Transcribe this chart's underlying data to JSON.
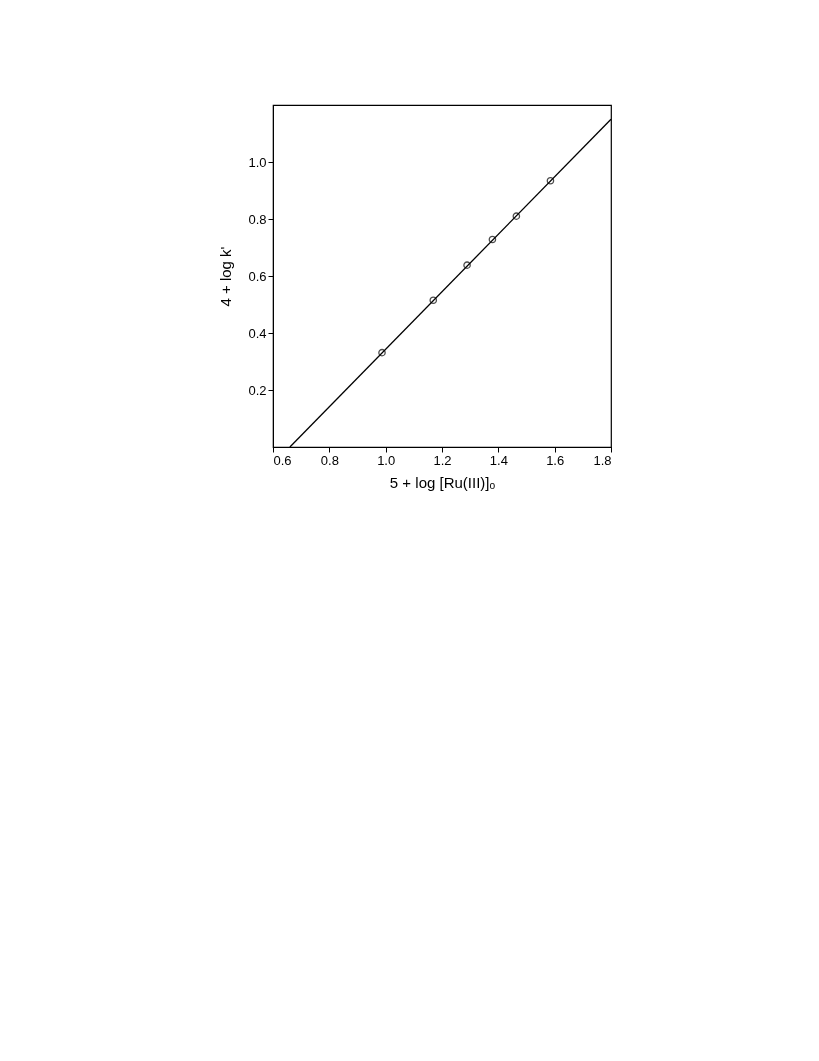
{
  "chart_data": {
    "type": "scatter",
    "xlabel": "5 + log [Ru(III)]ₒ",
    "ylabel": "4 + log k'",
    "xlim": [
      0.6,
      1.8
    ],
    "xticks": [
      0.6,
      0.8,
      {
        "value": 1,
        "label": "1.0"
      },
      1.2,
      1.4,
      1.6,
      1.8
    ],
    "ylim": [
      0,
      1.2
    ],
    "yticks": [
      0.2,
      0.4,
      0.6,
      0.8,
      {
        "value": 1,
        "label": "1.0"
      }
    ],
    "marker": "circle",
    "line_style": "solid",
    "series": [
      {
        "color": "#000000",
        "x": [
          0.987,
          1.169,
          1.289,
          1.379,
          1.464,
          1.585
        ],
        "values": [
          0.331,
          0.515,
          0.638,
          0.728,
          0.81,
          0.934
        ]
      },
      {
        "type": "line",
        "marker": "none",
        "color": "#000000",
        "x": [
          0.66,
          1.8
        ],
        "values": [
          0,
          1.15
        ]
      }
    ]
  }
}
